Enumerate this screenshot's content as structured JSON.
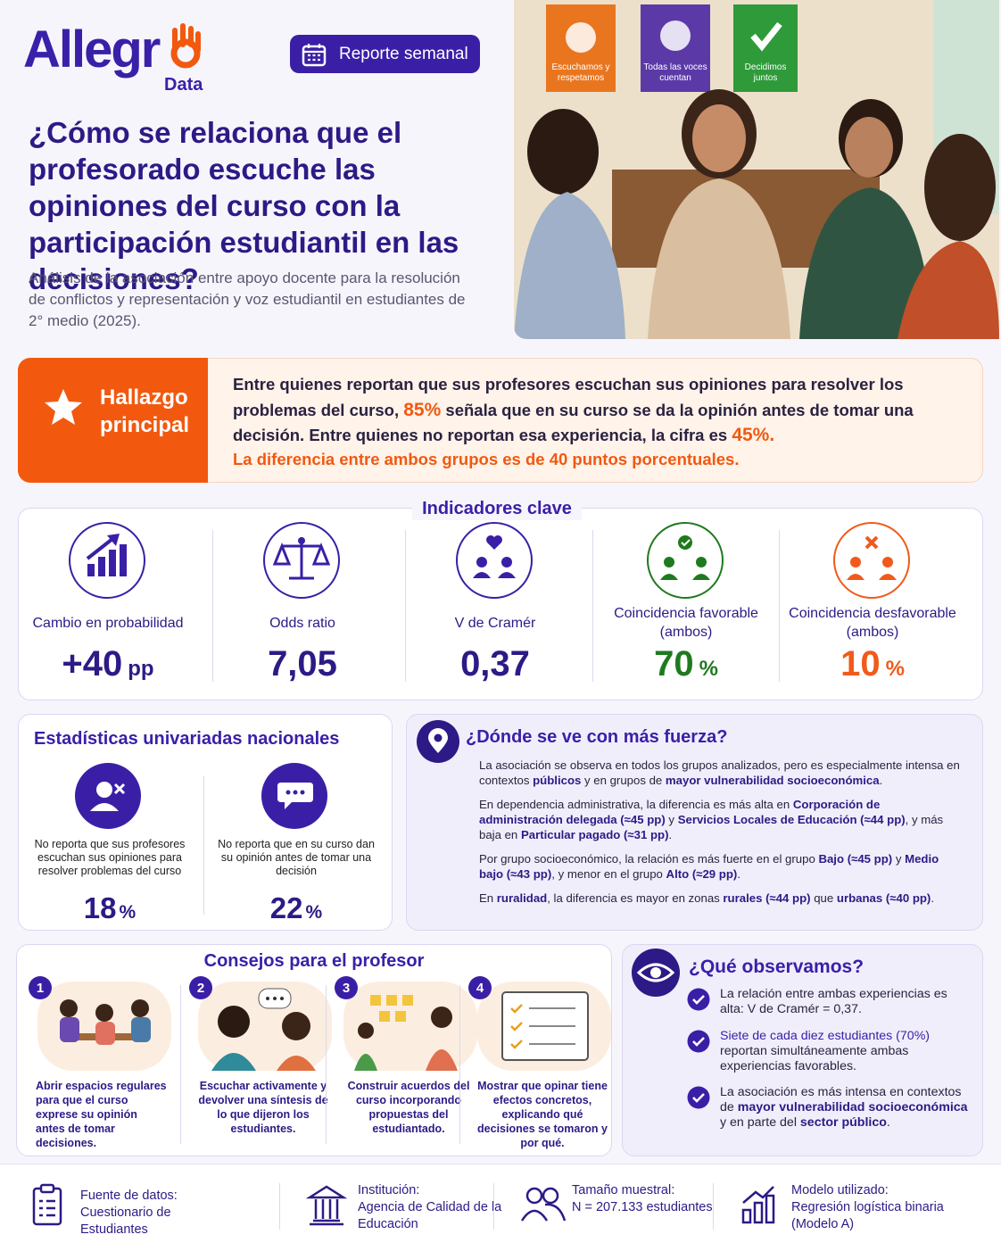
{
  "header": {
    "logo_main": "Allegr",
    "logo_sub": "Data",
    "badge": "Reporte semanal",
    "title": "¿Cómo se relaciona que el profesorado escuche las opiniones del curso con la participación estudiantil en las decisiones?",
    "subtitle": "Análisis de la asociación entre apoyo docente para la resolución de conflictos y representación y voz estudiantil en estudiantes de 2° medio (2025)."
  },
  "photo": {
    "posters": [
      "Escuchamos y respetamos",
      "Todas las voces cuentan",
      "Decidimos juntos"
    ]
  },
  "highlight": {
    "label": "Hallazgo principal",
    "text": [
      "Entre quienes reportan que sus profesores escuchan sus opiniones para resolver los problemas del curso, ",
      {
        "em": "85%"
      },
      " señala que en su curso se da la opinión antes de tomar una decisión. Entre quienes no reportan esa experiencia, la cifra es ",
      {
        "em": "45%."
      }
    ],
    "conclusion": "La diferencia entre ambos grupos es de 40 puntos porcentuales."
  },
  "indicators": {
    "title": "Indicadores clave",
    "items": [
      {
        "label": "Cambio en probabilidad",
        "value": "+40",
        "unit": "pp"
      },
      {
        "label": "Odds ratio",
        "value": "7,05"
      },
      {
        "label": "V de Cramér",
        "value": "0,37"
      },
      {
        "label": "Coincidencia favorable (ambos)",
        "value": "70",
        "unit": "%"
      },
      {
        "label": "Coincidencia desfavorable (ambos)",
        "value": "10",
        "unit": "%"
      }
    ]
  },
  "univariate": {
    "title": "Estadísticas univariadas nacionales",
    "items": [
      {
        "label": "No reporta que sus profesores escuchan sus opiniones para resolver problemas del curso",
        "value": "18",
        "unit": "%"
      },
      {
        "label": "No reporta que en su curso dan su opinión antes de tomar una decisión",
        "value": "22",
        "unit": "%"
      }
    ]
  },
  "where": {
    "title": "¿Dónde se ve con más fuerza?",
    "paragraphs": [
      [
        "La asociación se observa en todos los grupos analizados, pero es especialmente intensa en contextos ",
        {
          "em": "públicos"
        },
        " y en grupos de ",
        {
          "em": "mayor vulnerabilidad socioeconómica"
        },
        "."
      ],
      [
        "En dependencia administrativa, la diferencia es más alta en ",
        {
          "em": "Corporación de administración delegada (≈45 pp)"
        },
        " y ",
        {
          "em": "Servicios Locales de Educación (≈44 pp)"
        },
        ", y más baja en ",
        {
          "em": "Particular pagado (≈31 pp)"
        },
        "."
      ],
      [
        "Por grupo socioeconómico, la relación es más fuerte en el grupo ",
        {
          "em": "Bajo (≈45 pp)"
        },
        " y ",
        {
          "em": "Medio bajo (≈43 pp)"
        },
        ", y menor en el grupo ",
        {
          "em": "Alto (≈29 pp)"
        },
        "."
      ],
      [
        "En ",
        {
          "em": "ruralidad"
        },
        ", la diferencia es mayor en zonas ",
        {
          "em": "rurales (≈44 pp)"
        },
        " que ",
        {
          "em": "urbanas (≈40 pp)"
        },
        "."
      ]
    ]
  },
  "tips": {
    "title": "Consejos para el profesor",
    "items": [
      {
        "number": "1",
        "text": "Abrir espacios regulares para que el curso exprese su opinión antes de tomar decisiones."
      },
      {
        "number": "2",
        "text": "Escuchar activamente y devolver una síntesis de lo que dijeron los estudiantes."
      },
      {
        "number": "3",
        "text": "Construir acuerdos del curso incorporando propuestas del estudiantado."
      },
      {
        "number": "4",
        "text": "Mostrar que opinar tiene efectos concretos, explicando qué decisiones se tomaron y por qué."
      }
    ]
  },
  "observe": {
    "title": "¿Qué observamos?",
    "items": [
      [
        "La relación entre ambas experiencias es alta: V de Cramér = 0,37."
      ],
      [
        {
          "hi": "Siete de cada diez estudiantes (70%)"
        },
        " reportan simultáneamente ambas experiencias favorables."
      ],
      [
        "La asociación es más intensa en contextos de ",
        {
          "em": "mayor vulnerabilidad socioeconómica"
        },
        " y en parte del ",
        {
          "em": "sector público"
        },
        "."
      ]
    ]
  },
  "footer": {
    "items": [
      {
        "label": "Fuente de datos:",
        "value": "Cuestionario de Estudiantes"
      },
      {
        "label": "Institución:",
        "value": "Agencia de Calidad de la Educación"
      },
      {
        "label": "Tamaño muestral:",
        "value": "N = 207.133 estudiantes"
      },
      {
        "label": "Modelo utilizado:",
        "value": "Regresión logística binaria (Modelo A)"
      }
    ]
  }
}
